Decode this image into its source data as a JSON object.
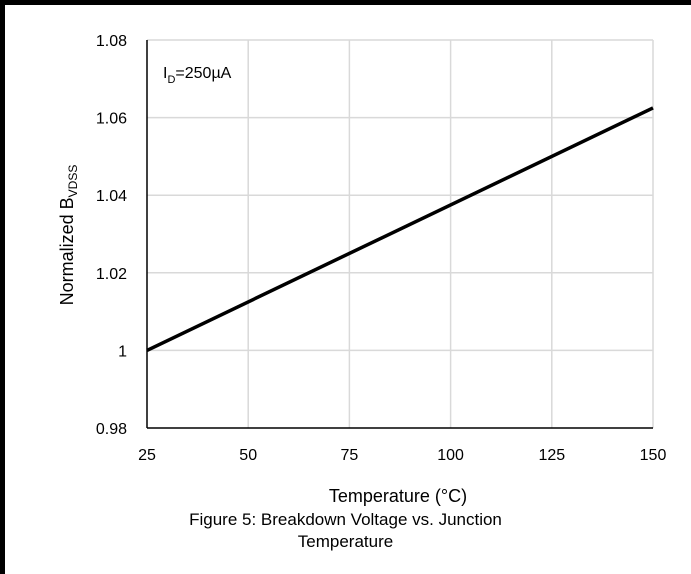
{
  "chart_data": {
    "type": "line",
    "title": "",
    "annotation": {
      "main": "I",
      "sub": "D",
      "rest": "=250µA"
    },
    "xlabel": "Temperature (°C)",
    "ylabel": {
      "main": "Normalized B",
      "sub": "VDSS"
    },
    "xlim": [
      25,
      150
    ],
    "ylim": [
      0.98,
      1.08
    ],
    "xticks": [
      25,
      50,
      75,
      100,
      125,
      150
    ],
    "yticks": [
      0.98,
      1.0,
      1.02,
      1.04,
      1.06,
      1.08
    ],
    "ytick_labels": [
      "0.98",
      "1",
      "1.02",
      "1.04",
      "1.06",
      "1.08"
    ],
    "grid": true,
    "series": [
      {
        "x": [
          25,
          150
        ],
        "y": [
          1.0,
          1.0625
        ],
        "color": "#000000"
      }
    ]
  },
  "caption": {
    "line1": "Figure 5: Breakdown Voltage vs. Junction",
    "line2": "Temperature"
  }
}
